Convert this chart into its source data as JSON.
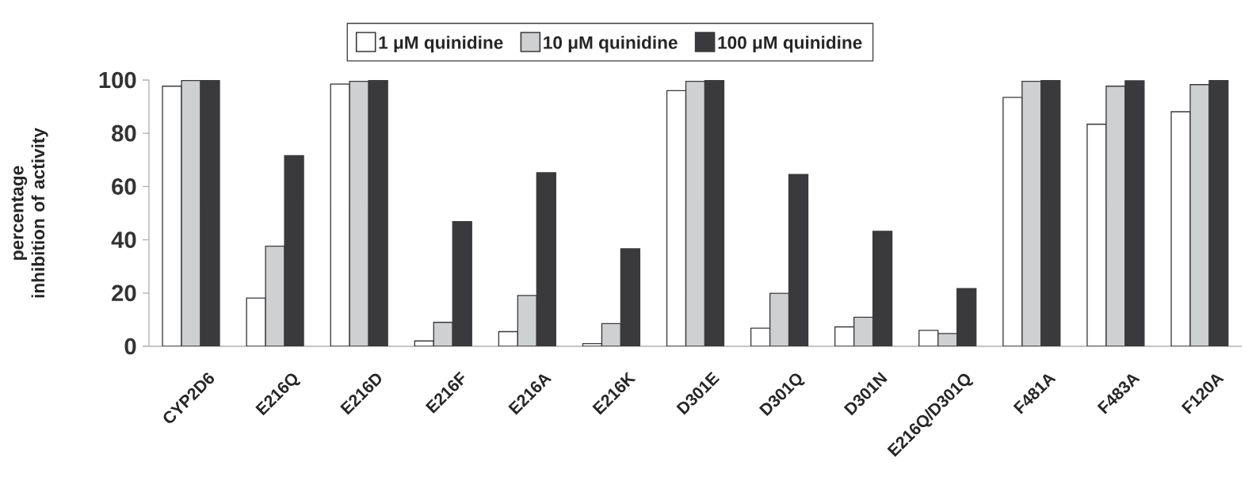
{
  "chart_data": {
    "type": "bar",
    "categories": [
      "CYP2D6",
      "E216Q",
      "E216D",
      "E216F",
      "E216A",
      "E216K",
      "D301E",
      "D301Q",
      "D301N",
      "E216Q/D301Q",
      "F481A",
      "F483A",
      "F120A"
    ],
    "series": [
      {
        "name": "1 μM quinidine",
        "color": "#ffffff",
        "values": [
          97.7,
          18.1,
          98.5,
          2.0,
          5.5,
          1.0,
          96.0,
          6.8,
          7.3,
          6.0,
          93.5,
          83.4,
          88.1
        ]
      },
      {
        "name": "10 μM quinidine",
        "color": "#cfd0d2",
        "values": [
          99.8,
          37.6,
          99.5,
          9.0,
          19.1,
          8.5,
          99.5,
          19.9,
          10.9,
          4.8,
          99.5,
          97.7,
          98.3
        ]
      },
      {
        "name": "100 μM quinidine",
        "color": "#3a3a3c",
        "values": [
          100,
          71.6,
          100,
          46.8,
          65.2,
          36.6,
          100,
          64.5,
          43.2,
          21.7,
          100,
          99.7,
          100
        ]
      }
    ],
    "ylabel": "percentage inhibition of activity",
    "ylim": [
      0,
      100
    ],
    "yticks": [
      0,
      20,
      40,
      60,
      80,
      100
    ],
    "legend": "top"
  }
}
